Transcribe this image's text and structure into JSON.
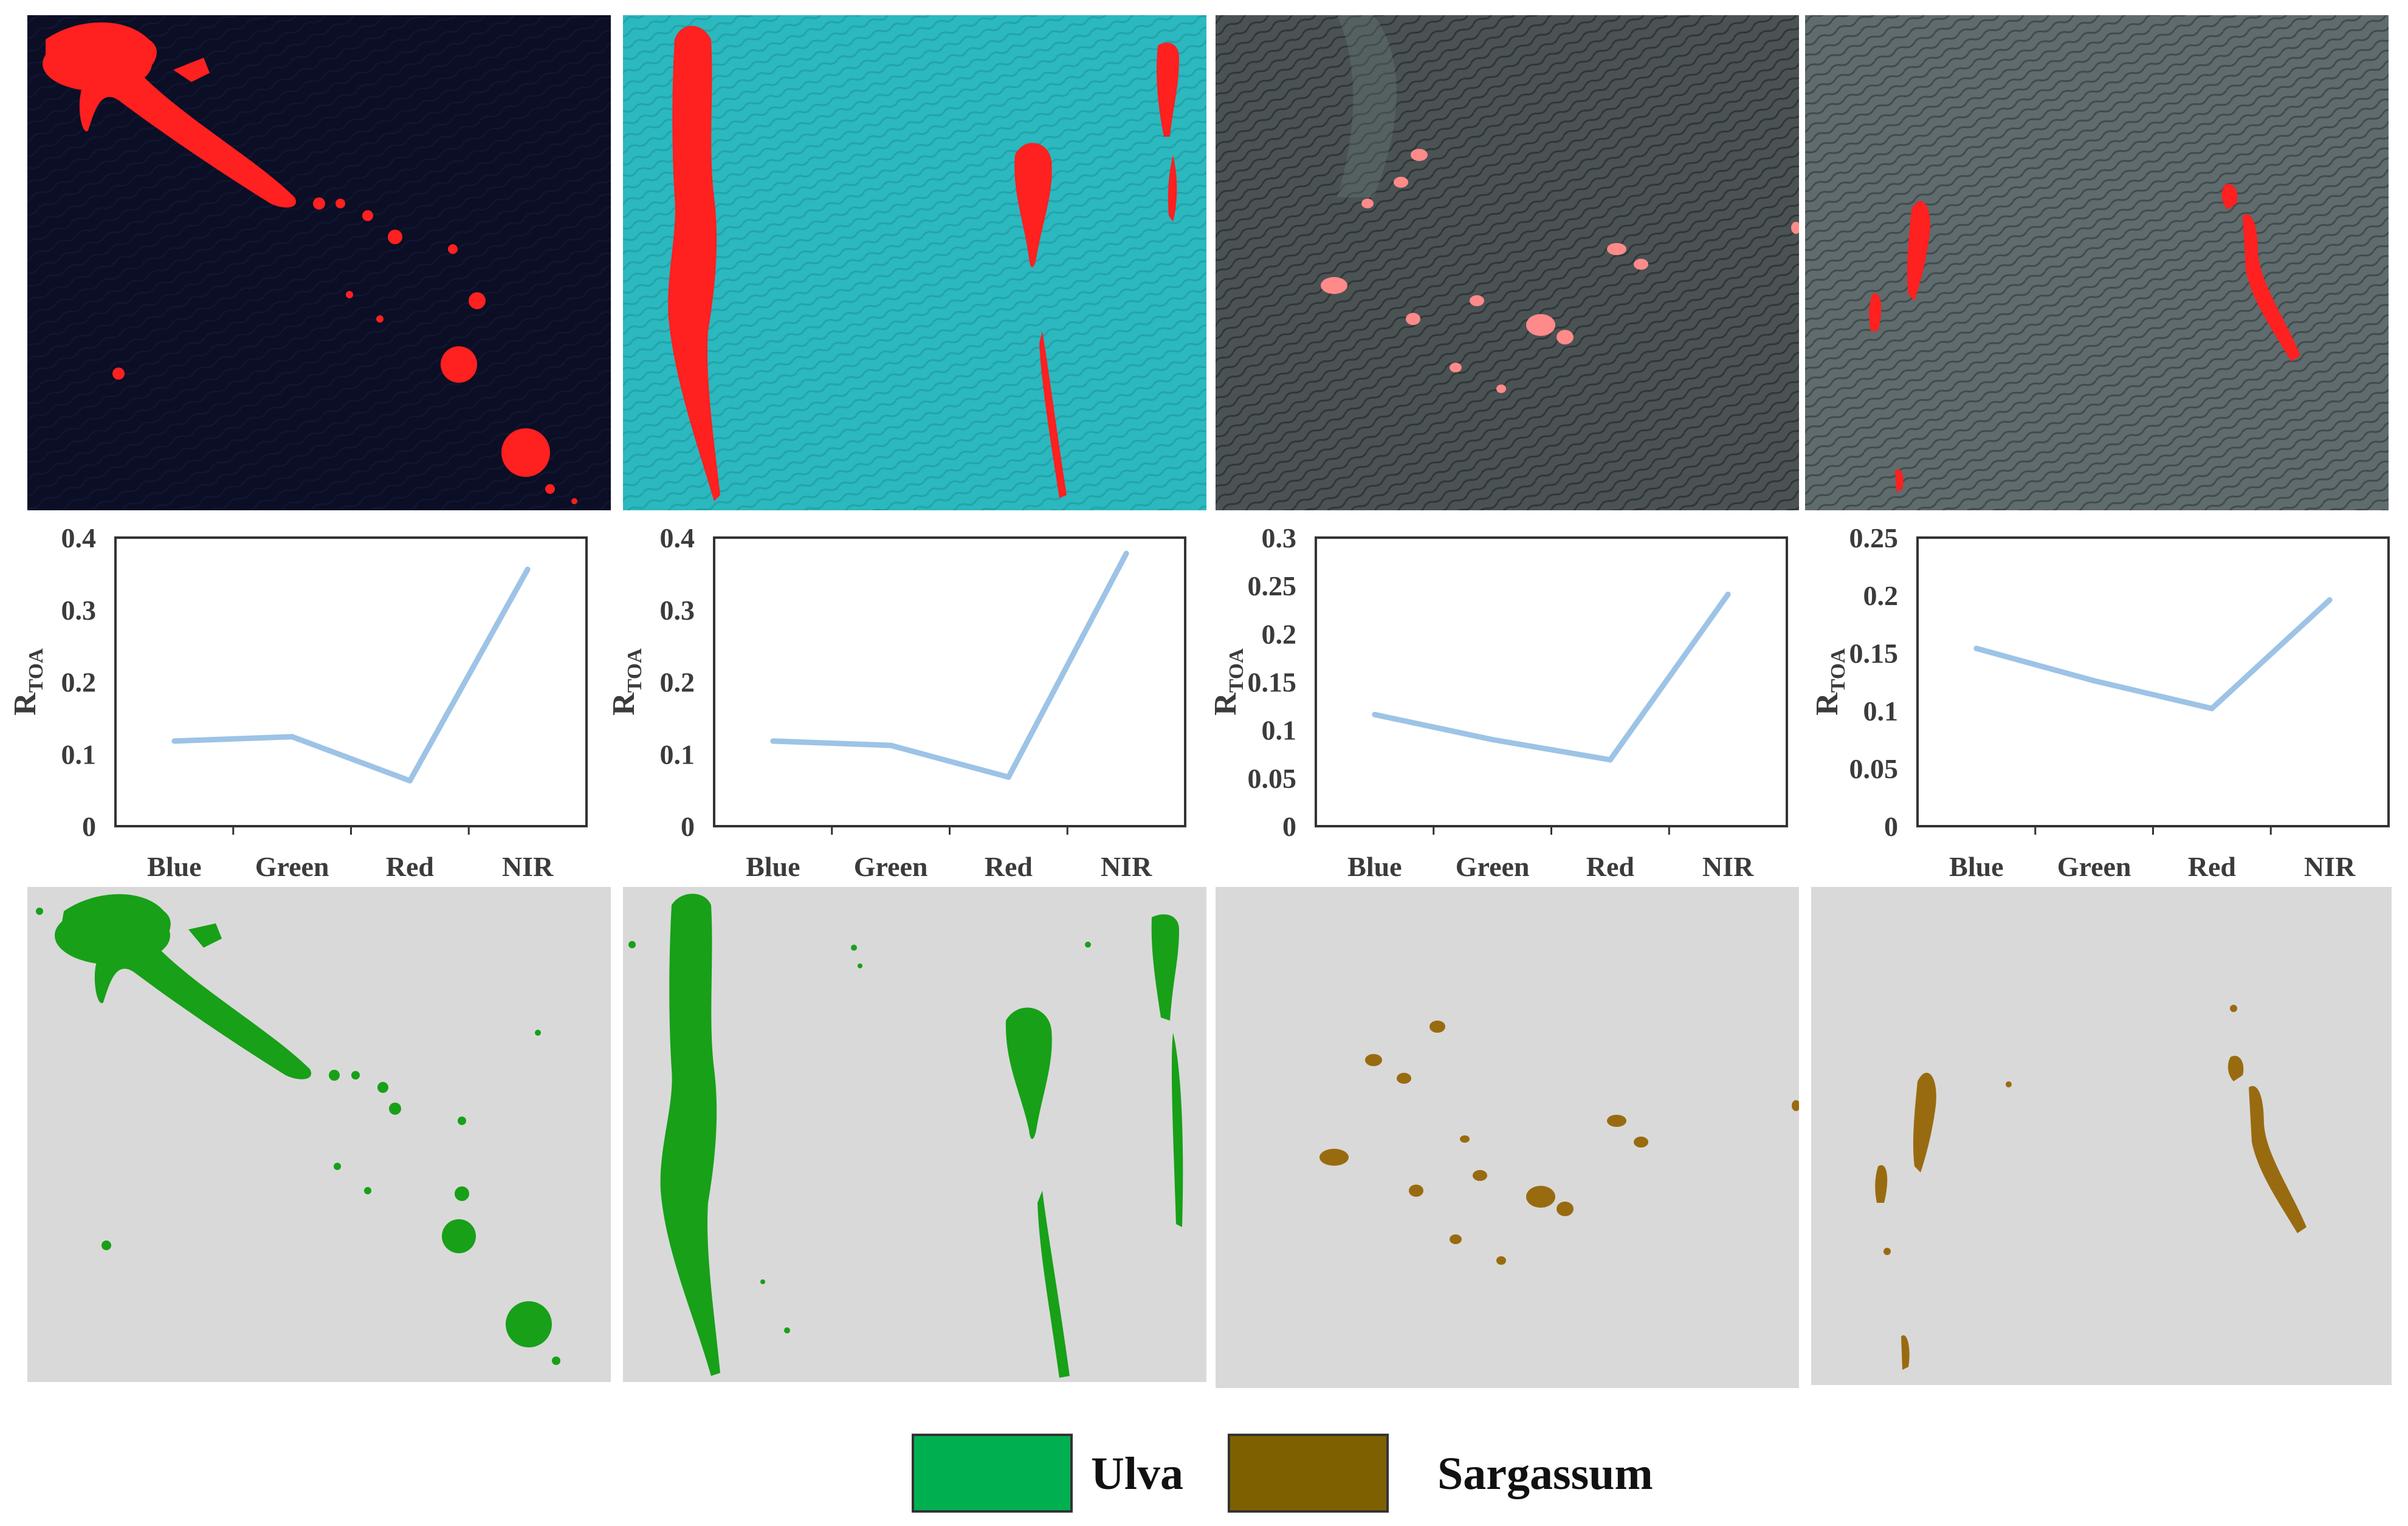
{
  "colors": {
    "ulva": "#00b050",
    "ulva_map": "#18a018",
    "sargassum": "#7f6000",
    "sargassum_map": "#996b10",
    "map_background": "#d9d9d9",
    "line": "#9dc3e6",
    "red_patch": "#ff2222"
  },
  "chart_data": [
    {
      "type": "line",
      "ylabel": "R",
      "ylabel_sub": "TOA",
      "categories": [
        "Blue",
        "Green",
        "Red",
        "NIR"
      ],
      "values": [
        0.118,
        0.124,
        0.063,
        0.356
      ],
      "ylim": [
        0,
        0.4
      ],
      "yticks": [
        "0",
        "0.1",
        "0.2",
        "0.3",
        "0.4"
      ],
      "grid": false
    },
    {
      "type": "line",
      "ylabel": "R",
      "ylabel_sub": "TOA",
      "categories": [
        "Blue",
        "Green",
        "Red",
        "NIR"
      ],
      "values": [
        0.118,
        0.112,
        0.068,
        0.378
      ],
      "ylim": [
        0,
        0.4
      ],
      "yticks": [
        "0",
        "0.1",
        "0.2",
        "0.3",
        "0.4"
      ],
      "grid": false
    },
    {
      "type": "line",
      "ylabel": "R",
      "ylabel_sub": "TOA",
      "categories": [
        "Blue",
        "Green",
        "Red",
        "NIR"
      ],
      "values": [
        0.116,
        0.09,
        0.069,
        0.241
      ],
      "ylim": [
        0,
        0.3
      ],
      "yticks": [
        "0",
        "0.05",
        "0.1",
        "0.15",
        "0.2",
        "0.25",
        "0.3"
      ],
      "grid": false
    },
    {
      "type": "line",
      "ylabel": "R",
      "ylabel_sub": "TOA",
      "categories": [
        "Blue",
        "Green",
        "Red",
        "NIR"
      ],
      "values": [
        0.154,
        0.126,
        0.102,
        0.196
      ],
      "ylim": [
        0,
        0.25
      ],
      "yticks": [
        "0",
        "0.05",
        "0.1",
        "0.15",
        "0.2",
        "0.25"
      ],
      "grid": false
    }
  ],
  "legend": {
    "ulva_label": "Ulva",
    "sargassum_label": "Sargassum"
  },
  "images": {
    "top_row": [
      "false-color-ulva-1",
      "false-color-ulva-2",
      "false-color-sargassum-1",
      "false-color-sargassum-2"
    ],
    "bottom_row": [
      "classified-ulva-1",
      "classified-ulva-2",
      "classified-sargassum-1",
      "classified-sargassum-2"
    ]
  }
}
